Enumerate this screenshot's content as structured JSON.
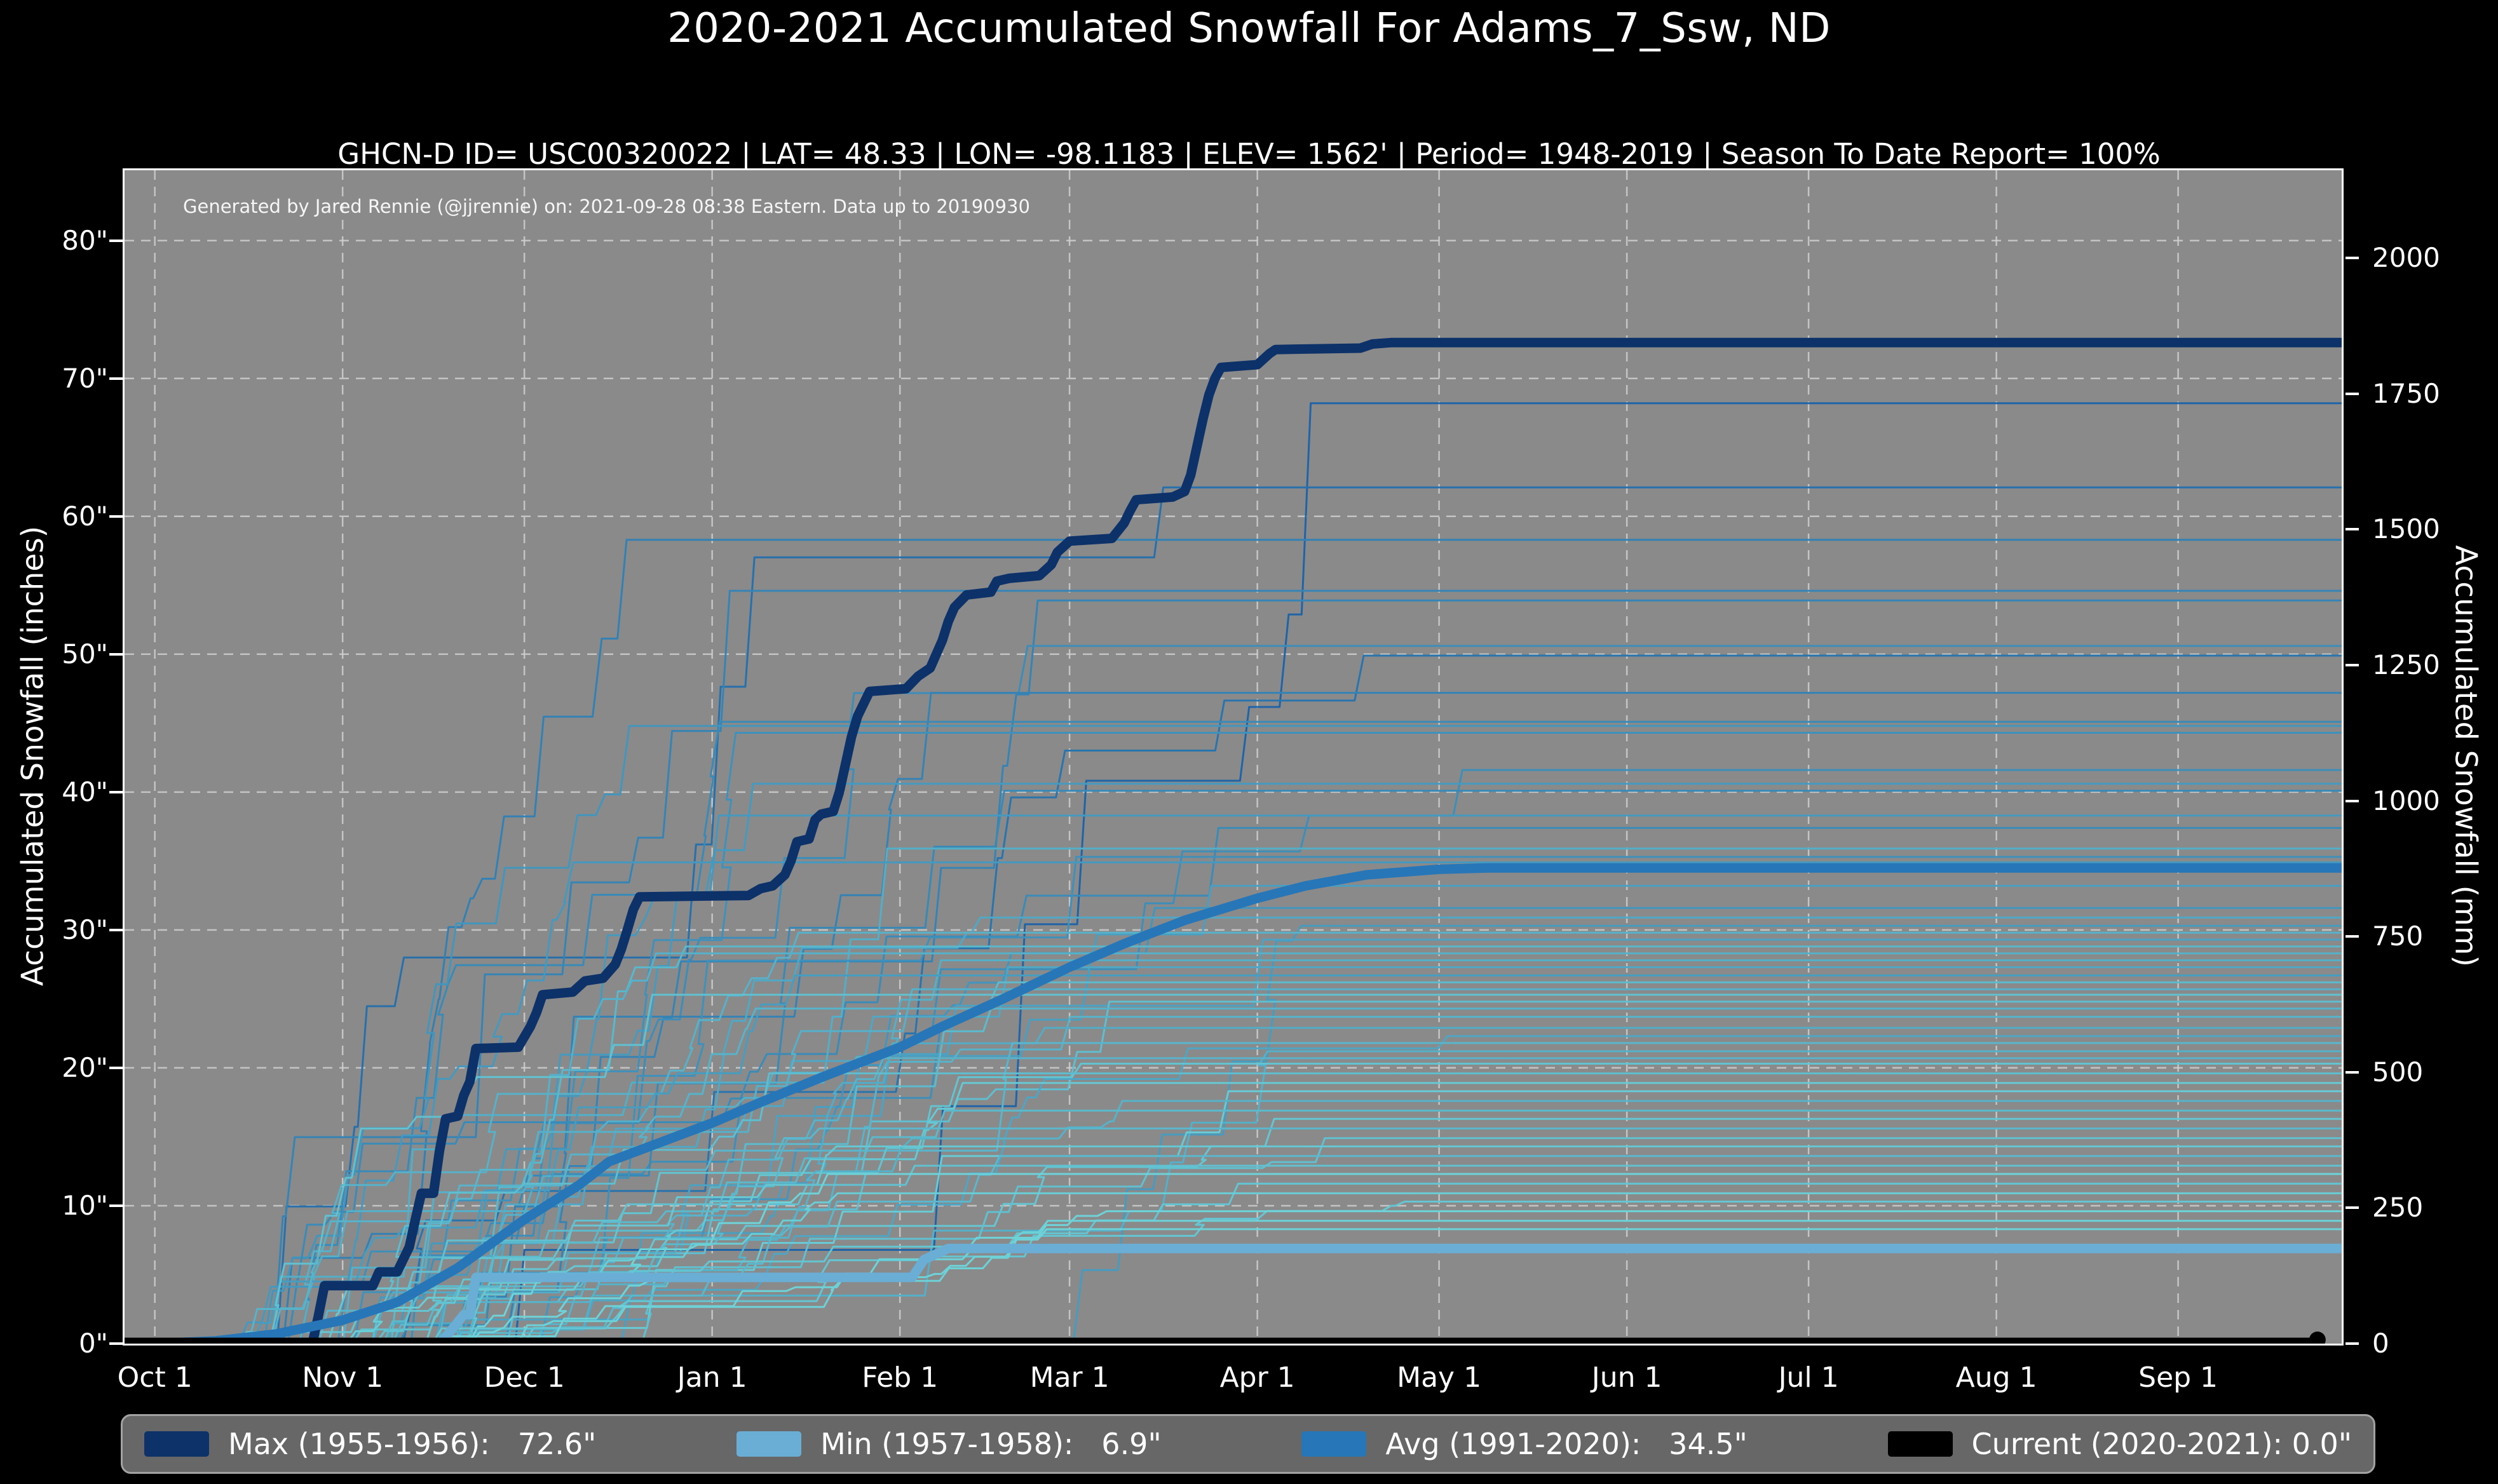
{
  "title": "2020-2021 Accumulated Snowfall For Adams_7_Ssw, ND",
  "subtitle": "GHCN-D ID= USC00320022 | LAT= 48.33 | LON= -98.1183 | ELEV= 1562' | Period= 1948-2019 | Season To Date Report= 100%",
  "watermark": "Generated by Jared Rennie (@jjrennie) on: 2021-09-28 08:38 Eastern. Data up to 20190930",
  "colors": {
    "page_bg": "#000000",
    "plot_bg": "#8a8a8a",
    "grid": "#cfcfcf",
    "spine": "#ffffff",
    "text": "#ffffff",
    "max_line": "#0d3169",
    "min_line": "#6aaed6",
    "avg_line": "#2676b8",
    "current_line": "#000000",
    "ensemble_dark": "#1b5fa5",
    "ensemble_light": "#6ed3d8",
    "legend_bg": "#676767",
    "legend_border": "#a3a3a3"
  },
  "legend": {
    "items": [
      {
        "name": "max",
        "label": "Max (1955-1956):   72.6\"",
        "color": "#0d3169"
      },
      {
        "name": "min",
        "label": "Min (1957-1958):   6.9\"",
        "color": "#6aaed6"
      },
      {
        "name": "avg",
        "label": "Avg (1991-2020):   34.5\"",
        "color": "#2676b8"
      },
      {
        "name": "current",
        "label": "Current (2020-2021): 0.0\"",
        "color": "#000000"
      }
    ]
  },
  "chart_data": {
    "type": "line",
    "title": "2020-2021 Accumulated Snowfall For Adams_7_Ssw, ND",
    "x_axis": {
      "tick_labels": [
        "Oct 1",
        "Nov 1",
        "Dec 1",
        "Jan 1",
        "Feb 1",
        "Mar 1",
        "Apr 1",
        "May 1",
        "Jun 1",
        "Jul 1",
        "Aug 1",
        "Sep 1"
      ],
      "tick_days": [
        0,
        31,
        61,
        92,
        123,
        151,
        182,
        212,
        243,
        273,
        304,
        334
      ],
      "domain_days": [
        -5,
        361
      ],
      "grid": true
    },
    "y_left": {
      "label": "Accumulated Snowfall (inches)",
      "tick_labels": [
        "0\"",
        "10\"",
        "20\"",
        "30\"",
        "40\"",
        "50\"",
        "60\"",
        "70\"",
        "80\""
      ],
      "tick_values": [
        0,
        10,
        20,
        30,
        40,
        50,
        60,
        70,
        80
      ],
      "max_inches": 85.1,
      "grid": true
    },
    "y_right": {
      "label": "Accumulated Snowfall (mm)",
      "tick_labels": [
        "0",
        "250",
        "500",
        "750",
        "1000",
        "1250",
        "1500",
        "1750",
        "2000"
      ],
      "tick_values_mm": [
        0,
        250,
        500,
        750,
        1000,
        1250,
        1500,
        1750,
        2000
      ],
      "mm_per_inch": 25.4
    },
    "series": [
      {
        "name": "max",
        "legend": "Max (1955-1956): 72.6\"",
        "final_inches": 72.6,
        "color": "#0d3169",
        "width": 15,
        "points": [
          [
            0,
            0
          ],
          [
            26,
            0
          ],
          [
            27,
            2
          ],
          [
            28,
            4.2
          ],
          [
            36,
            4.2
          ],
          [
            37,
            5.2
          ],
          [
            40,
            5.2
          ],
          [
            42,
            7
          ],
          [
            43,
            9
          ],
          [
            44,
            10.9
          ],
          [
            46,
            10.9
          ],
          [
            47,
            14
          ],
          [
            48,
            16.3
          ],
          [
            50,
            16.5
          ],
          [
            51,
            18
          ],
          [
            52,
            19
          ],
          [
            53,
            21.4
          ],
          [
            60,
            21.5
          ],
          [
            62,
            23
          ],
          [
            63,
            24
          ],
          [
            64,
            25.3
          ],
          [
            69,
            25.5
          ],
          [
            71,
            26.3
          ],
          [
            74,
            26.5
          ],
          [
            76,
            27.5
          ],
          [
            77,
            28.6
          ],
          [
            78,
            30
          ],
          [
            79,
            31.5
          ],
          [
            80,
            32.4
          ],
          [
            98,
            32.5
          ],
          [
            100,
            33
          ],
          [
            102,
            33.2
          ],
          [
            104,
            34
          ],
          [
            105,
            35
          ],
          [
            106,
            36.4
          ],
          [
            108,
            36.6
          ],
          [
            109,
            38
          ],
          [
            110,
            38.4
          ],
          [
            112,
            38.6
          ],
          [
            113,
            40
          ],
          [
            114,
            42
          ],
          [
            115,
            44
          ],
          [
            116,
            45.5
          ],
          [
            117,
            46.4
          ],
          [
            118,
            47.3
          ],
          [
            124,
            47.5
          ],
          [
            126,
            48.4
          ],
          [
            128,
            49
          ],
          [
            129,
            50
          ],
          [
            130,
            51
          ],
          [
            131,
            52.4
          ],
          [
            132,
            53.4
          ],
          [
            134,
            54.3
          ],
          [
            138,
            54.5
          ],
          [
            139,
            55.3
          ],
          [
            141,
            55.5
          ],
          [
            146,
            55.7
          ],
          [
            148,
            56.5
          ],
          [
            149,
            57.4
          ],
          [
            151,
            58.2
          ],
          [
            158,
            58.4
          ],
          [
            160,
            59.5
          ],
          [
            161,
            60.4
          ],
          [
            162,
            61.2
          ],
          [
            168,
            61.4
          ],
          [
            170,
            61.8
          ],
          [
            171,
            63
          ],
          [
            172,
            65
          ],
          [
            173,
            67
          ],
          [
            174,
            68.8
          ],
          [
            175,
            70
          ],
          [
            176,
            70.8
          ],
          [
            182,
            71
          ],
          [
            184,
            71.8
          ],
          [
            185,
            72.1
          ],
          [
            199,
            72.2
          ],
          [
            201,
            72.5
          ],
          [
            204,
            72.6
          ],
          [
            361,
            72.6
          ]
        ]
      },
      {
        "name": "min",
        "legend": "Min (1957-1958): 6.9\"",
        "final_inches": 6.9,
        "color": "#6aaed6",
        "width": 15,
        "points": [
          [
            0,
            0
          ],
          [
            47,
            0
          ],
          [
            49,
            1
          ],
          [
            51,
            2.1
          ],
          [
            52,
            2.1
          ],
          [
            53,
            4.8
          ],
          [
            125,
            4.8
          ],
          [
            127,
            6.1
          ],
          [
            129,
            6.5
          ],
          [
            131,
            6.9
          ],
          [
            361,
            6.9
          ]
        ]
      },
      {
        "name": "avg",
        "legend": "Avg (1991-2020): 34.5\"",
        "final_inches": 34.5,
        "color": "#2676b8",
        "width": 15,
        "points": [
          [
            0,
            0
          ],
          [
            10,
            0.2
          ],
          [
            20,
            0.7
          ],
          [
            31,
            1.7
          ],
          [
            40,
            3
          ],
          [
            50,
            5.5
          ],
          [
            61,
            9
          ],
          [
            70,
            11.5
          ],
          [
            75,
            13.2
          ],
          [
            92,
            16
          ],
          [
            100,
            17.5
          ],
          [
            110,
            19.3
          ],
          [
            123,
            21.5
          ],
          [
            130,
            23
          ],
          [
            140,
            25
          ],
          [
            151,
            27.3
          ],
          [
            160,
            29
          ],
          [
            170,
            30.7
          ],
          [
            182,
            32.3
          ],
          [
            190,
            33.2
          ],
          [
            200,
            34
          ],
          [
            212,
            34.4
          ],
          [
            220,
            34.5
          ],
          [
            361,
            34.5
          ]
        ]
      },
      {
        "name": "current",
        "legend": "Current (2020-2021): 0.0\"",
        "final_inches": 0.0,
        "color": "#000000",
        "width": 11,
        "end_dot": true,
        "points": [
          [
            -5,
            0
          ],
          [
            357,
            0
          ]
        ]
      }
    ],
    "ensemble": {
      "note": "thin background lines, one per season 1948-2019, flat after season end",
      "seed": 7,
      "line_width": 3,
      "final_values": [
        68.2,
        62.1,
        58.3,
        54.6,
        53.9,
        50.6,
        49.9,
        47.2,
        45.1,
        44.8,
        44.3,
        41.6,
        40.6,
        40.1,
        38.3,
        37.4,
        35.9,
        35.3,
        34.9,
        33.2,
        31.6,
        30.9,
        30.3,
        29.8,
        29.3,
        28.8,
        28.3,
        27.8,
        27.3,
        26.7,
        26.2,
        25.7,
        25.3,
        24.8,
        24.3,
        23.7,
        22.9,
        22.3,
        21.8,
        21.2,
        20.7,
        20.3,
        19.6,
        18.9,
        18.3,
        17.6,
        16.9,
        16.3,
        15.6,
        14.9,
        14.3,
        13.6,
        12.9,
        12.3,
        11.6,
        10.9,
        10.3,
        9.6,
        8.9,
        8.3
      ]
    }
  }
}
